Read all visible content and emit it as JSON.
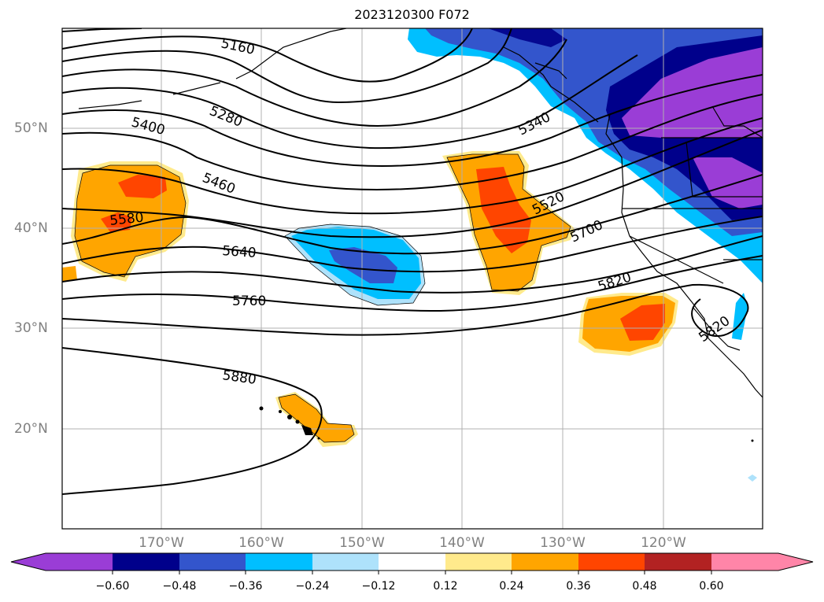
{
  "title": "2023120300 F072",
  "lat_labels": [
    "50°N",
    "40°N",
    "30°N",
    "20°N"
  ],
  "lon_labels": [
    "170°W",
    "160°W",
    "150°W",
    "140°W",
    "130°W",
    "120°W"
  ],
  "contour_labels": [
    "5160",
    "5280",
    "5340",
    "5400",
    "5460",
    "5520",
    "5580",
    "5640",
    "5700",
    "5760",
    "5820",
    "5820",
    "5880"
  ],
  "colorbar": {
    "ticks": [
      "−0.60",
      "−0.48",
      "−0.36",
      "−0.24",
      "−0.12",
      "0.12",
      "0.24",
      "0.36",
      "0.48",
      "0.60"
    ],
    "colors": [
      "#9a3dd6",
      "#00008b",
      "#3355cc",
      "#00bfff",
      "#aee2fb",
      "#ffffff",
      "#ffea8c",
      "#ffa500",
      "#ff4500",
      "#b22222",
      "#ff85a8"
    ]
  }
}
